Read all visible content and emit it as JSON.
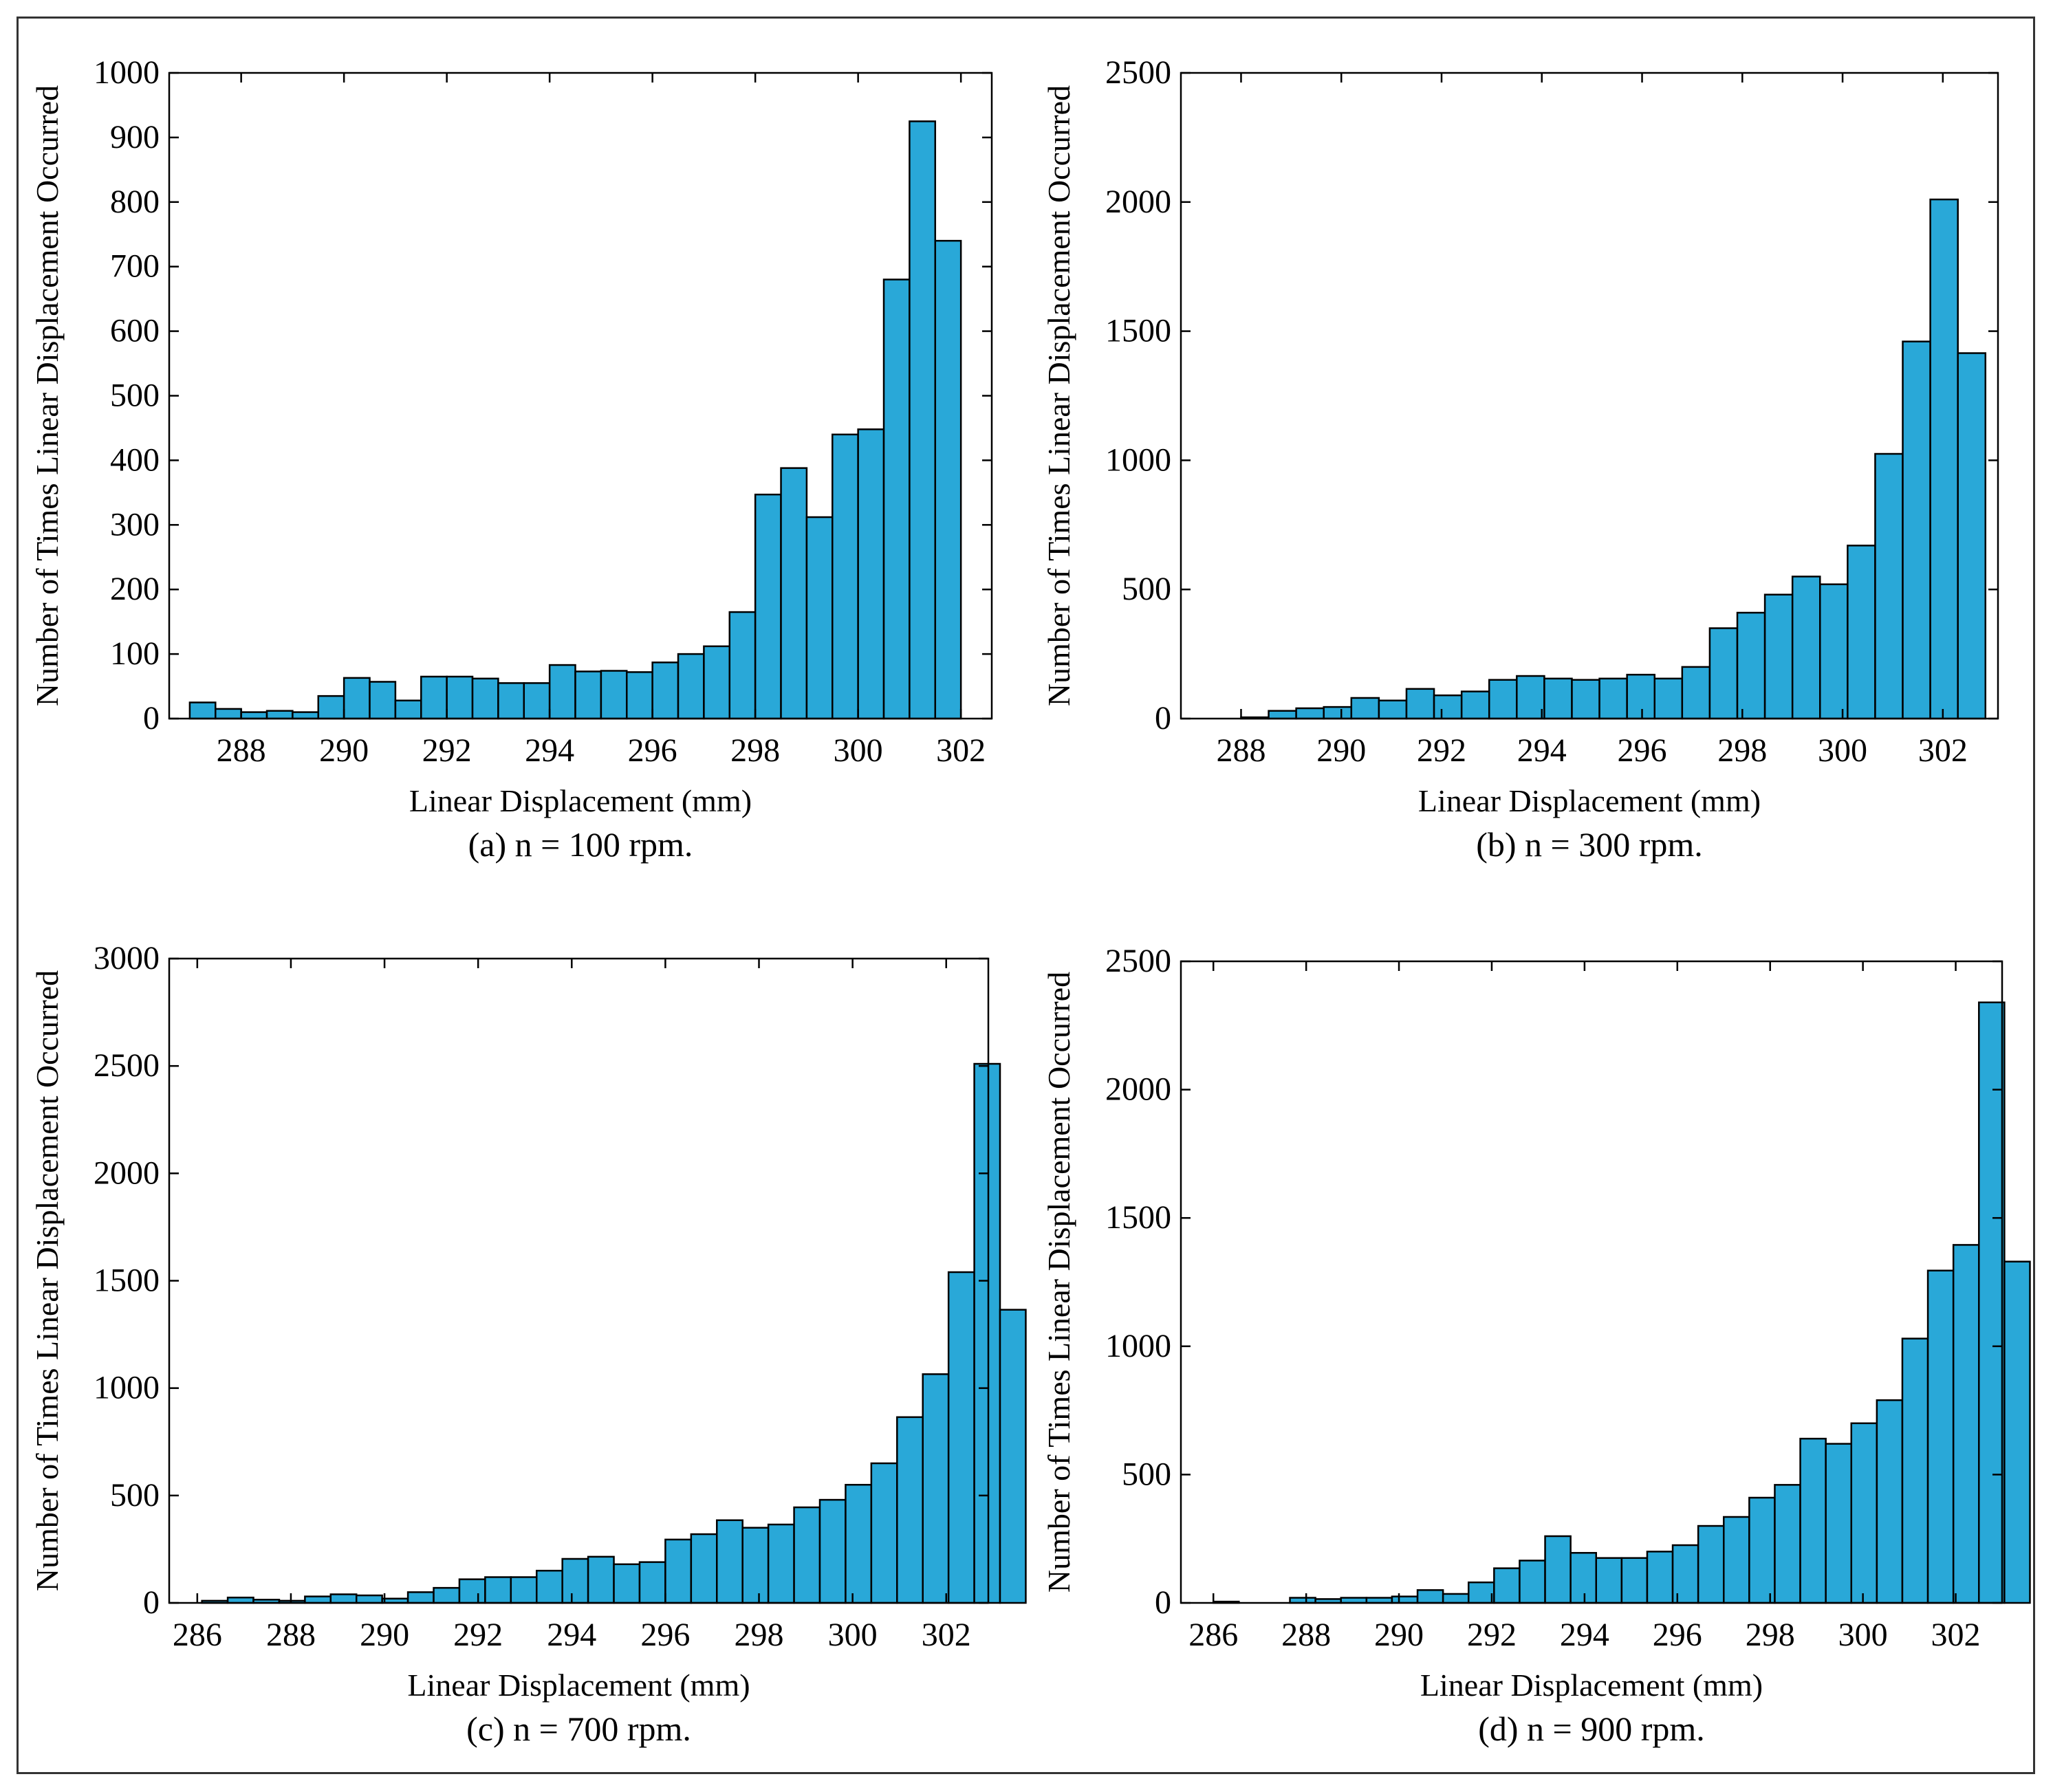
{
  "colors": {
    "bar": "#29A8D8",
    "bar_edge": "#000000",
    "axis": "#000000",
    "background": "#ffffff"
  },
  "chart_data": [
    {
      "id": "a",
      "type": "bar",
      "title": "",
      "caption": "(a) n = 100 rpm.",
      "xlabel": "Linear Displacement (mm)",
      "ylabel": "Number of Times Linear Displacement Occurred",
      "xlim": [
        286.6,
        302.6
      ],
      "ylim": [
        0,
        1000
      ],
      "xticks": [
        288,
        290,
        292,
        294,
        296,
        298,
        300,
        302
      ],
      "yticks": [
        0,
        100,
        200,
        300,
        400,
        500,
        600,
        700,
        800,
        900,
        1000
      ],
      "bin_start": 287.0,
      "bin_width": 0.5,
      "values": [
        25,
        15,
        10,
        12,
        10,
        35,
        63,
        57,
        28,
        65,
        65,
        62,
        55,
        55,
        83,
        73,
        74,
        72,
        87,
        100,
        112,
        165,
        347,
        388,
        312,
        440,
        448,
        680,
        925,
        740
      ]
    },
    {
      "id": "b",
      "type": "bar",
      "title": "",
      "caption": "(b) n = 300 rpm.",
      "xlabel": "Linear Displacement (mm)",
      "ylabel": "Number of Times Linear Displacement Occurred",
      "xlim": [
        286.8,
        303.1
      ],
      "ylim": [
        0,
        2500
      ],
      "xticks": [
        288,
        290,
        292,
        294,
        296,
        298,
        300,
        302
      ],
      "yticks": [
        0,
        500,
        1000,
        1500,
        2000,
        2500
      ],
      "bin_start": 288.0,
      "bin_width": 0.55,
      "values": [
        5,
        30,
        40,
        45,
        80,
        70,
        115,
        90,
        105,
        150,
        165,
        155,
        150,
        155,
        170,
        155,
        200,
        350,
        410,
        480,
        550,
        520,
        670,
        1025,
        1460,
        2010,
        1415
      ]
    },
    {
      "id": "c",
      "type": "bar",
      "title": "",
      "caption": "(c) n = 700 rpm.",
      "xlabel": "Linear Displacement (mm)",
      "ylabel": "Number of Times Linear Displacement Occurred",
      "xlim": [
        285.4,
        302.9
      ],
      "ylim": [
        0,
        3000
      ],
      "xticks": [
        286,
        288,
        290,
        292,
        294,
        296,
        298,
        300,
        302
      ],
      "yticks": [
        0,
        500,
        1000,
        1500,
        2000,
        2500,
        3000
      ],
      "bin_start": 286.1,
      "bin_width": 0.55,
      "values": [
        10,
        25,
        15,
        10,
        30,
        40,
        35,
        20,
        50,
        70,
        110,
        120,
        120,
        150,
        205,
        215,
        180,
        190,
        295,
        320,
        385,
        350,
        365,
        445,
        480,
        550,
        650,
        865,
        1065,
        1540,
        2510,
        1365
      ]
    },
    {
      "id": "d",
      "type": "bar",
      "title": "",
      "caption": "(d) n = 900 rpm.",
      "xlabel": "Linear Displacement (mm)",
      "ylabel": "Number of Times Linear Displacement Occurred",
      "xlim": [
        285.3,
        303.0
      ],
      "ylim": [
        0,
        2500
      ],
      "xticks": [
        286,
        288,
        290,
        292,
        294,
        296,
        298,
        300,
        302
      ],
      "yticks": [
        0,
        500,
        1000,
        1500,
        2000,
        2500
      ],
      "bin_start": 286.0,
      "bin_width": 0.55,
      "values": [
        5,
        0,
        0,
        20,
        15,
        20,
        20,
        25,
        50,
        35,
        80,
        135,
        165,
        260,
        195,
        175,
        175,
        200,
        225,
        300,
        335,
        410,
        460,
        640,
        620,
        700,
        790,
        1030,
        1295,
        1395,
        2340,
        1330
      ]
    }
  ]
}
